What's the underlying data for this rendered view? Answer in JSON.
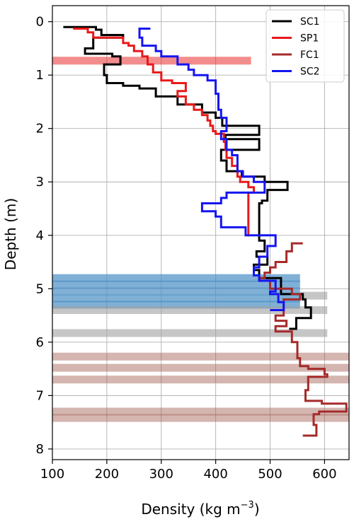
{
  "chart_data": {
    "type": "line",
    "title": "",
    "xlabel": "Density (kg m",
    "xlabel_sup": "−3",
    "xlabel_close": ")",
    "ylabel": "Depth (m)",
    "xlim": [
      100,
      645
    ],
    "ylim": [
      8.2,
      -0.3
    ],
    "y_inverted": true,
    "x_ticks": [
      100,
      200,
      300,
      400,
      500,
      600
    ],
    "y_ticks": [
      0,
      1,
      2,
      3,
      4,
      5,
      6,
      7,
      8
    ],
    "grid": true,
    "legend_position": "top-right",
    "series": [
      {
        "name": "SC1",
        "color": "#000000",
        "steps": [
          [
            120,
            0.1
          ],
          [
            180,
            0.1
          ],
          [
            180,
            0.15
          ],
          [
            190,
            0.15
          ],
          [
            190,
            0.25
          ],
          [
            230,
            0.25
          ],
          [
            230,
            0.3
          ],
          [
            175,
            0.3
          ],
          [
            175,
            0.5
          ],
          [
            160,
            0.5
          ],
          [
            160,
            0.6
          ],
          [
            210,
            0.6
          ],
          [
            210,
            0.65
          ],
          [
            225,
            0.65
          ],
          [
            225,
            0.8
          ],
          [
            195,
            0.8
          ],
          [
            195,
            1.0
          ],
          [
            200,
            1.0
          ],
          [
            200,
            1.15
          ],
          [
            230,
            1.15
          ],
          [
            230,
            1.2
          ],
          [
            260,
            1.2
          ],
          [
            260,
            1.25
          ],
          [
            290,
            1.25
          ],
          [
            290,
            1.4
          ],
          [
            330,
            1.4
          ],
          [
            330,
            1.55
          ],
          [
            375,
            1.55
          ],
          [
            375,
            1.7
          ],
          [
            400,
            1.7
          ],
          [
            400,
            1.8
          ],
          [
            412,
            1.8
          ],
          [
            412,
            1.95
          ],
          [
            480,
            1.95
          ],
          [
            480,
            2.12
          ],
          [
            418,
            2.12
          ],
          [
            418,
            2.2
          ],
          [
            480,
            2.2
          ],
          [
            480,
            2.4
          ],
          [
            410,
            2.4
          ],
          [
            410,
            2.6
          ],
          [
            420,
            2.6
          ],
          [
            420,
            2.8
          ],
          [
            448,
            2.8
          ],
          [
            448,
            2.9
          ],
          [
            490,
            2.9
          ],
          [
            490,
            3.0
          ],
          [
            532,
            3.0
          ],
          [
            532,
            3.15
          ],
          [
            495,
            3.15
          ],
          [
            495,
            3.35
          ],
          [
            485,
            3.35
          ],
          [
            485,
            3.4
          ],
          [
            480,
            3.4
          ],
          [
            480,
            4.1
          ],
          [
            490,
            4.1
          ],
          [
            490,
            4.3
          ],
          [
            475,
            4.3
          ],
          [
            475,
            4.4
          ],
          [
            495,
            4.4
          ],
          [
            495,
            4.55
          ],
          [
            470,
            4.55
          ],
          [
            470,
            4.65
          ],
          [
            480,
            4.65
          ],
          [
            480,
            4.8
          ],
          [
            520,
            4.8
          ],
          [
            520,
            5.1
          ],
          [
            560,
            5.1
          ],
          [
            560,
            5.2
          ],
          [
            565,
            5.2
          ],
          [
            565,
            5.35
          ],
          [
            575,
            5.35
          ],
          [
            575,
            5.55
          ],
          [
            548,
            5.55
          ],
          [
            548,
            5.6
          ],
          [
            548,
            5.75
          ],
          [
            535,
            5.75
          ]
        ]
      },
      {
        "name": "SP1",
        "color": "#e8191a",
        "steps": [
          [
            138,
            0.13
          ],
          [
            165,
            0.13
          ],
          [
            165,
            0.2
          ],
          [
            175,
            0.2
          ],
          [
            175,
            0.3
          ],
          [
            230,
            0.3
          ],
          [
            230,
            0.4
          ],
          [
            240,
            0.4
          ],
          [
            240,
            0.45
          ],
          [
            250,
            0.45
          ],
          [
            250,
            0.55
          ],
          [
            265,
            0.55
          ],
          [
            265,
            0.65
          ],
          [
            275,
            0.65
          ],
          [
            275,
            0.8
          ],
          [
            285,
            0.8
          ],
          [
            285,
            0.95
          ],
          [
            300,
            0.95
          ],
          [
            300,
            1.1
          ],
          [
            320,
            1.1
          ],
          [
            320,
            1.15
          ],
          [
            345,
            1.15
          ],
          [
            345,
            1.3
          ],
          [
            330,
            1.3
          ],
          [
            330,
            1.4
          ],
          [
            345,
            1.4
          ],
          [
            345,
            1.55
          ],
          [
            360,
            1.55
          ],
          [
            360,
            1.65
          ],
          [
            375,
            1.65
          ],
          [
            375,
            1.75
          ],
          [
            385,
            1.75
          ],
          [
            385,
            1.85
          ],
          [
            390,
            1.85
          ],
          [
            390,
            1.95
          ],
          [
            395,
            1.95
          ],
          [
            395,
            2.05
          ],
          [
            400,
            2.05
          ],
          [
            400,
            2.1
          ],
          [
            415,
            2.1
          ],
          [
            415,
            2.25
          ],
          [
            418,
            2.25
          ],
          [
            418,
            2.4
          ],
          [
            420,
            2.4
          ],
          [
            420,
            2.55
          ],
          [
            430,
            2.55
          ],
          [
            430,
            2.7
          ],
          [
            440,
            2.7
          ],
          [
            440,
            2.9
          ],
          [
            445,
            2.9
          ],
          [
            445,
            3.0
          ],
          [
            460,
            3.0
          ],
          [
            460,
            3.1
          ],
          [
            470,
            3.1
          ],
          [
            470,
            3.2
          ],
          [
            460,
            3.2
          ],
          [
            460,
            4.02
          ]
        ]
      },
      {
        "name": "FC1",
        "color": "#a52a2a",
        "steps": [
          [
            560,
            4.15
          ],
          [
            540,
            4.15
          ],
          [
            540,
            4.3
          ],
          [
            530,
            4.3
          ],
          [
            530,
            4.5
          ],
          [
            510,
            4.5
          ],
          [
            510,
            4.6
          ],
          [
            500,
            4.6
          ],
          [
            500,
            4.7
          ],
          [
            490,
            4.7
          ],
          [
            490,
            4.8
          ],
          [
            480,
            4.8
          ],
          [
            480,
            4.85
          ],
          [
            500,
            4.85
          ],
          [
            500,
            5.0
          ],
          [
            540,
            5.0
          ],
          [
            540,
            5.1
          ],
          [
            555,
            5.1
          ],
          [
            555,
            5.2
          ],
          [
            525,
            5.2
          ],
          [
            525,
            5.5
          ],
          [
            510,
            5.5
          ],
          [
            510,
            5.6
          ],
          [
            530,
            5.6
          ],
          [
            530,
            5.7
          ],
          [
            510,
            5.7
          ],
          [
            510,
            5.8
          ],
          [
            540,
            5.8
          ],
          [
            540,
            6.0
          ],
          [
            550,
            6.0
          ],
          [
            550,
            6.3
          ],
          [
            555,
            6.3
          ],
          [
            555,
            6.45
          ],
          [
            570,
            6.45
          ],
          [
            570,
            6.5
          ],
          [
            600,
            6.5
          ],
          [
            600,
            6.6
          ],
          [
            605,
            6.6
          ],
          [
            605,
            6.65
          ],
          [
            570,
            6.65
          ],
          [
            570,
            6.9
          ],
          [
            565,
            6.9
          ],
          [
            565,
            7.1
          ],
          [
            595,
            7.1
          ],
          [
            595,
            7.15
          ],
          [
            640,
            7.15
          ],
          [
            640,
            7.3
          ],
          [
            590,
            7.3
          ],
          [
            590,
            7.35
          ],
          [
            580,
            7.35
          ],
          [
            580,
            7.55
          ],
          [
            585,
            7.55
          ],
          [
            585,
            7.75
          ],
          [
            560,
            7.75
          ]
        ]
      },
      {
        "name": "SC2",
        "color": "#1515f0",
        "steps": [
          [
            280,
            0.13
          ],
          [
            260,
            0.13
          ],
          [
            260,
            0.3
          ],
          [
            265,
            0.3
          ],
          [
            265,
            0.45
          ],
          [
            290,
            0.45
          ],
          [
            290,
            0.55
          ],
          [
            300,
            0.55
          ],
          [
            300,
            0.65
          ],
          [
            330,
            0.65
          ],
          [
            330,
            0.8
          ],
          [
            350,
            0.8
          ],
          [
            350,
            0.9
          ],
          [
            360,
            0.9
          ],
          [
            360,
            1.0
          ],
          [
            385,
            1.0
          ],
          [
            385,
            1.1
          ],
          [
            400,
            1.1
          ],
          [
            400,
            1.35
          ],
          [
            405,
            1.35
          ],
          [
            405,
            1.65
          ],
          [
            410,
            1.65
          ],
          [
            410,
            1.8
          ],
          [
            420,
            1.8
          ],
          [
            420,
            2.05
          ],
          [
            410,
            2.05
          ],
          [
            410,
            2.2
          ],
          [
            420,
            2.2
          ],
          [
            420,
            2.4
          ],
          [
            430,
            2.4
          ],
          [
            430,
            2.5
          ],
          [
            440,
            2.5
          ],
          [
            440,
            2.8
          ],
          [
            450,
            2.8
          ],
          [
            450,
            2.9
          ],
          [
            470,
            2.9
          ],
          [
            470,
            3.0
          ],
          [
            490,
            3.0
          ],
          [
            490,
            3.2
          ],
          [
            420,
            3.2
          ],
          [
            420,
            3.3
          ],
          [
            410,
            3.3
          ],
          [
            410,
            3.4
          ],
          [
            375,
            3.4
          ],
          [
            375,
            3.55
          ],
          [
            400,
            3.55
          ],
          [
            400,
            3.65
          ],
          [
            410,
            3.65
          ],
          [
            410,
            3.85
          ],
          [
            455,
            3.85
          ],
          [
            455,
            4.0
          ],
          [
            510,
            4.0
          ],
          [
            510,
            4.2
          ],
          [
            495,
            4.2
          ],
          [
            495,
            4.4
          ],
          [
            480,
            4.4
          ],
          [
            480,
            4.6
          ],
          [
            470,
            4.6
          ],
          [
            470,
            4.75
          ],
          [
            480,
            4.75
          ],
          [
            480,
            4.85
          ],
          [
            510,
            4.85
          ],
          [
            510,
            5.05
          ],
          [
            500,
            5.05
          ],
          [
            500,
            5.1
          ],
          [
            515,
            5.1
          ],
          [
            515,
            5.25
          ],
          [
            525,
            5.25
          ],
          [
            525,
            5.4
          ],
          [
            500,
            5.4
          ]
        ]
      }
    ],
    "bands": [
      {
        "depth": 0.73,
        "x_from": 100,
        "x_to": 465,
        "color": "#e8191a",
        "opacity": 0.5
      },
      {
        "depth": 4.8,
        "x_from": 100,
        "x_to": 555,
        "color": "#4a8fc4",
        "opacity": 0.7
      },
      {
        "depth": 4.92,
        "x_from": 100,
        "x_to": 555,
        "color": "#4a8fc4",
        "opacity": 0.7
      },
      {
        "depth": 5.05,
        "x_from": 100,
        "x_to": 555,
        "color": "#4a8fc4",
        "opacity": 0.7
      },
      {
        "depth": 5.18,
        "x_from": 100,
        "x_to": 555,
        "color": "#4a8fc4",
        "opacity": 0.7
      },
      {
        "depth": 5.3,
        "x_from": 100,
        "x_to": 555,
        "color": "#4a8fc4",
        "opacity": 0.7
      },
      {
        "depth": 5.13,
        "x_from": 555,
        "x_to": 605,
        "color": "#a0a0a0",
        "opacity": 0.6
      },
      {
        "depth": 5.4,
        "x_from": 555,
        "x_to": 605,
        "color": "#a0a0a0",
        "opacity": 0.6
      },
      {
        "depth": 5.4,
        "x_from": 100,
        "x_to": 555,
        "color": "#a0a0a0",
        "opacity": 0.6
      },
      {
        "depth": 5.83,
        "x_from": 100,
        "x_to": 605,
        "color": "#a0a0a0",
        "opacity": 0.6
      },
      {
        "depth": 6.27,
        "x_from": 100,
        "x_to": 645,
        "color": "#a05a50",
        "opacity": 0.45
      },
      {
        "depth": 6.48,
        "x_from": 100,
        "x_to": 645,
        "color": "#a05a50",
        "opacity": 0.45
      },
      {
        "depth": 6.7,
        "x_from": 100,
        "x_to": 645,
        "color": "#a05a50",
        "opacity": 0.45
      },
      {
        "depth": 7.3,
        "x_from": 100,
        "x_to": 645,
        "color": "#a05a50",
        "opacity": 0.45
      },
      {
        "depth": 7.42,
        "x_from": 100,
        "x_to": 645,
        "color": "#a05a50",
        "opacity": 0.45
      }
    ]
  }
}
